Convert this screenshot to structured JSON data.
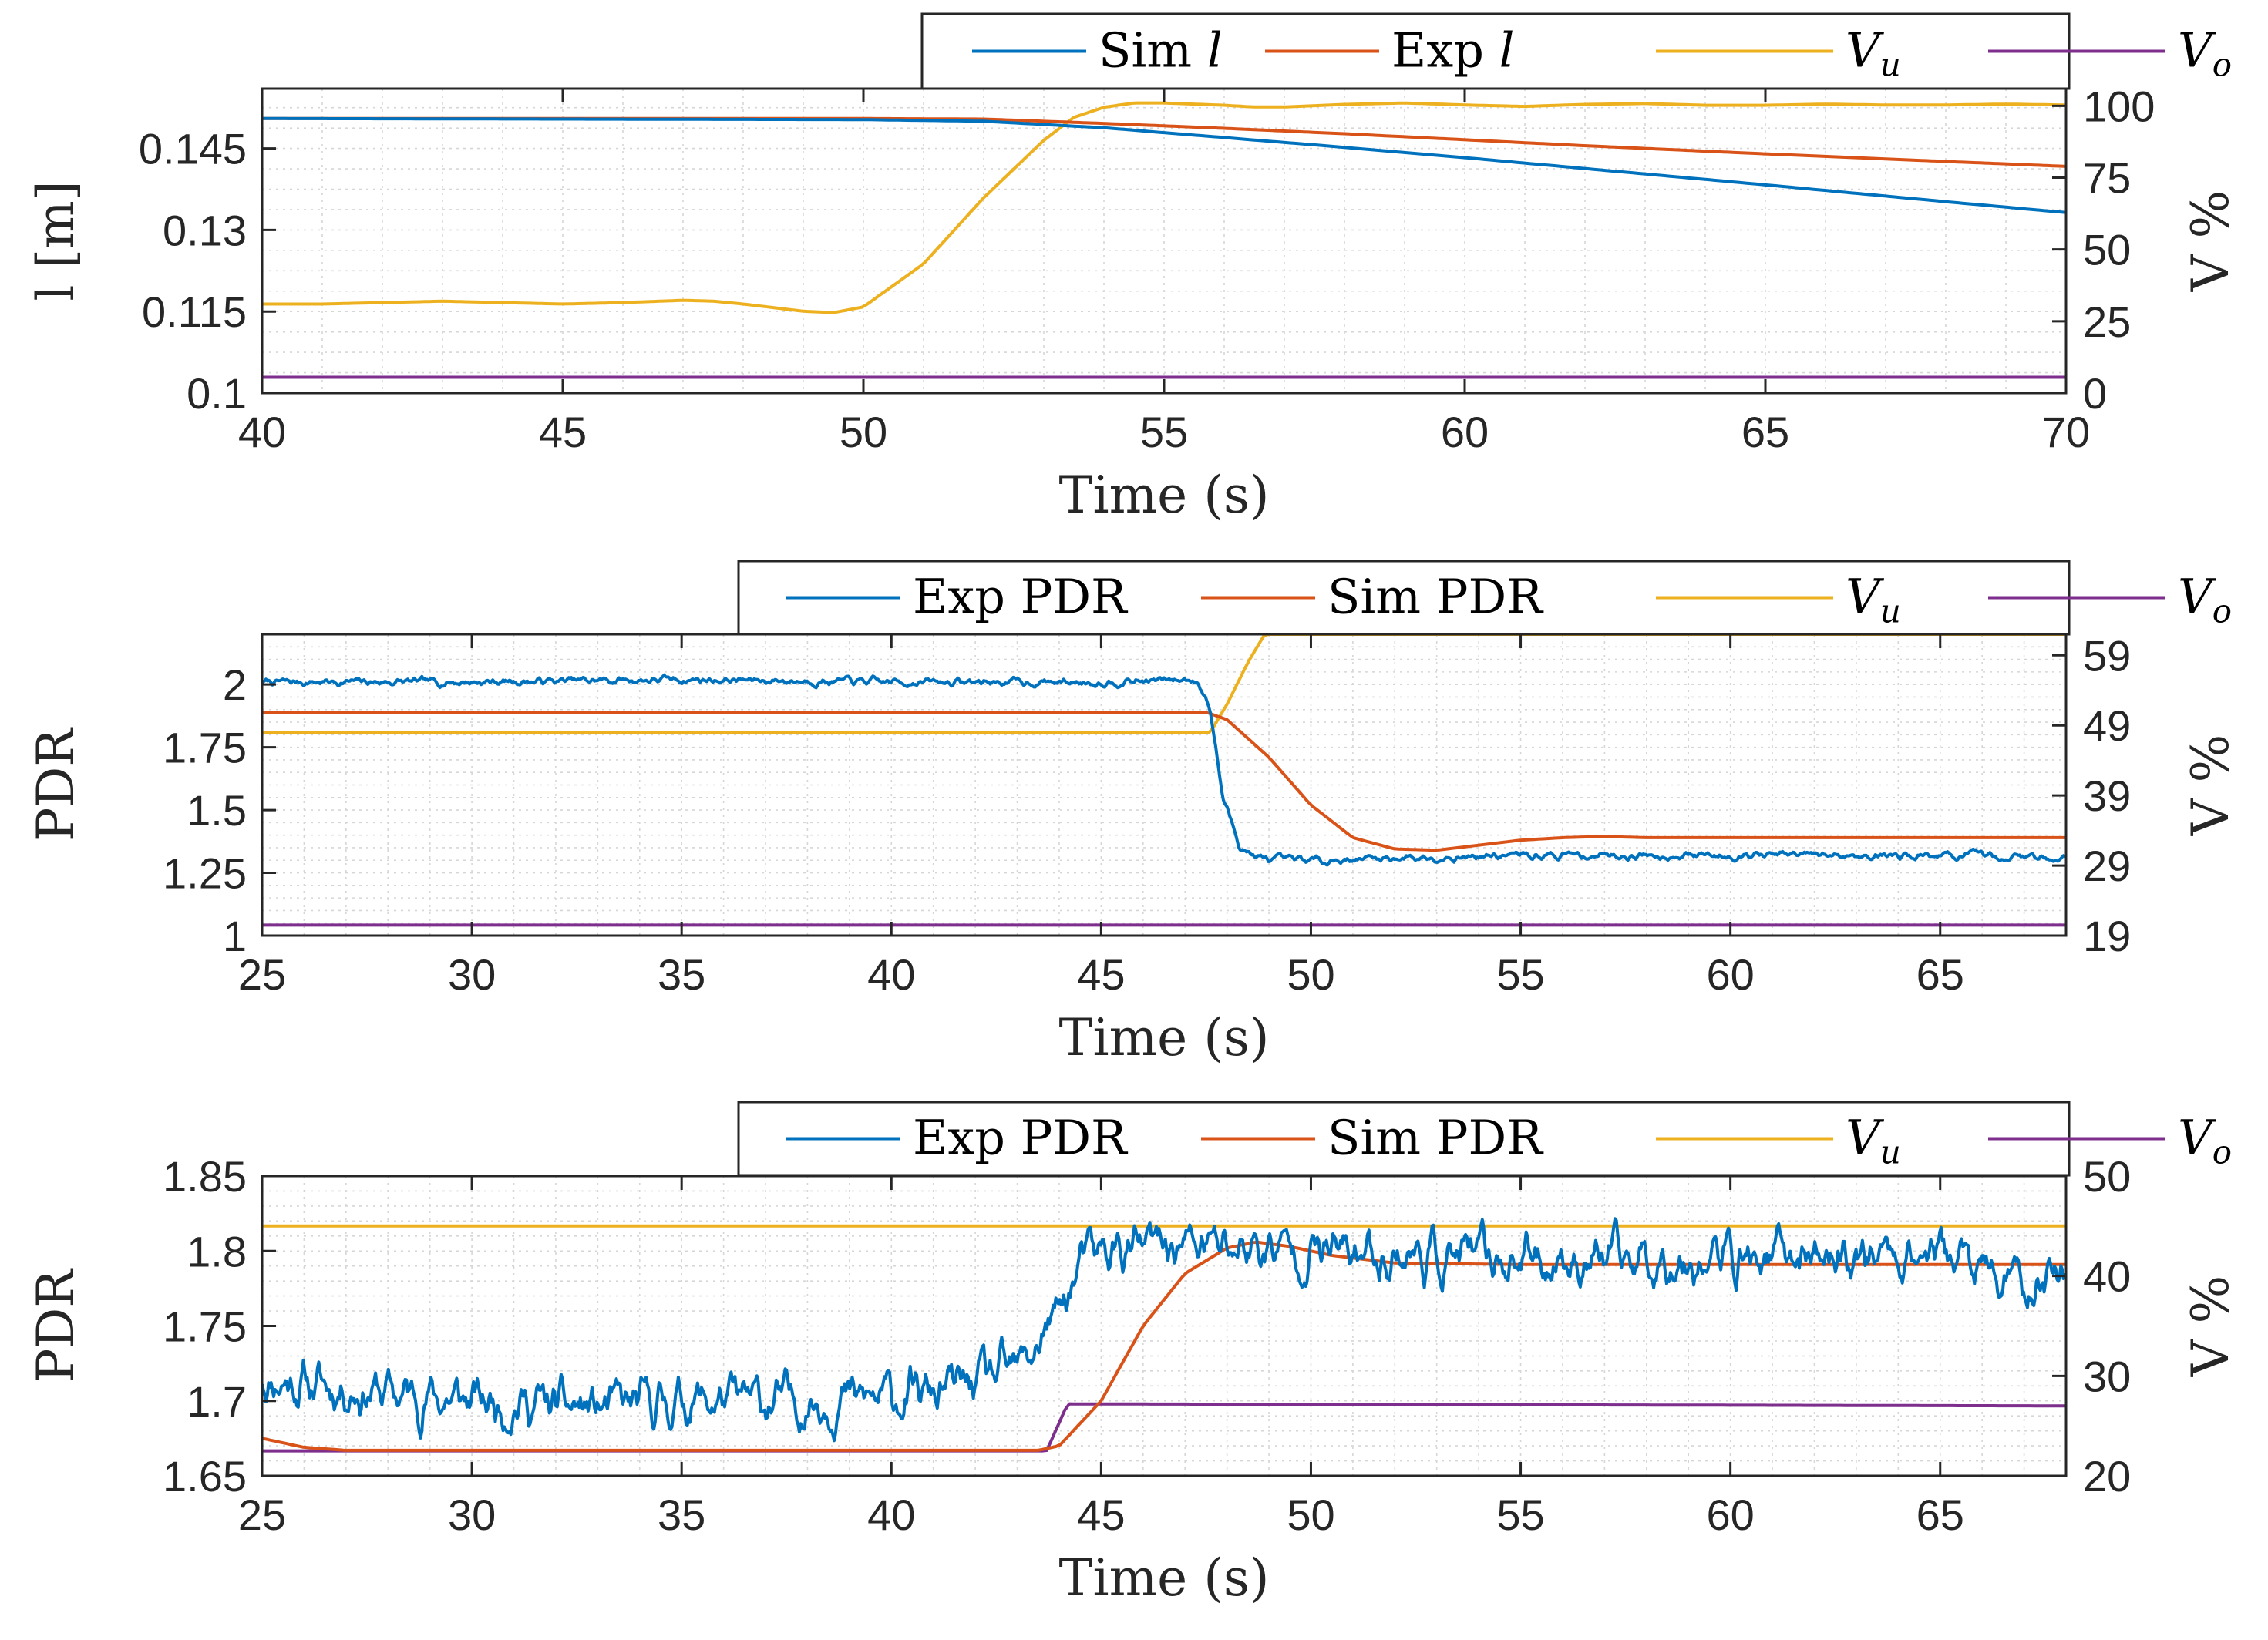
{
  "colors": {
    "blue": "#0072BD",
    "orange": "#D95319",
    "yellow": "#EDB120",
    "purple": "#7E2F8E",
    "axis": "#262626",
    "grid": "#d6d6d6"
  },
  "chart_data": [
    {
      "type": "line",
      "xlabel": "Time (s)",
      "ylabel": "l [m]",
      "ylabel_right": "V %",
      "xlim": [
        40,
        70
      ],
      "ylim": [
        0.1,
        0.156
      ],
      "ylim_right": [
        0,
        106
      ],
      "xticks": [
        "40",
        "45",
        "50",
        "55",
        "60",
        "65",
        "70"
      ],
      "yticks": [
        "0.1",
        "0.115",
        "0.13",
        "0.145"
      ],
      "yticks_right": [
        "0",
        "25",
        "50",
        "75",
        "100"
      ],
      "legend": [
        {
          "name": "Sim",
          "sym": "l",
          "sub": "",
          "color": "blue"
        },
        {
          "name": "Exp",
          "sym": "l",
          "sub": "",
          "color": "orange"
        },
        {
          "name": "",
          "sym": "V",
          "sub": "u",
          "color": "yellow"
        },
        {
          "name": "",
          "sym": "V",
          "sub": "o",
          "color": "purple"
        }
      ],
      "series": [
        {
          "name": "Sim l",
          "axis": "left",
          "color": "blue",
          "x": [
            40,
            45,
            50,
            52,
            54,
            56,
            58,
            60,
            62,
            65,
            68,
            70
          ],
          "y": [
            0.1505,
            0.1504,
            0.1503,
            0.15,
            0.1488,
            0.147,
            0.1452,
            0.1433,
            0.1413,
            0.1383,
            0.1352,
            0.1332
          ]
        },
        {
          "name": "Exp l",
          "axis": "left",
          "color": "orange",
          "x": [
            40,
            45,
            50,
            52,
            54,
            56,
            58,
            60,
            62,
            65,
            68,
            70
          ],
          "y": [
            0.1505,
            0.1505,
            0.1505,
            0.1504,
            0.1496,
            0.1487,
            0.1477,
            0.1466,
            0.1455,
            0.144,
            0.1426,
            0.1417
          ]
        },
        {
          "name": "V_u",
          "axis": "right",
          "color": "yellow",
          "x": [
            40,
            41,
            42,
            43,
            44,
            45,
            46,
            47,
            47.5,
            48,
            49,
            49.5,
            50,
            51,
            52,
            53,
            53.5,
            54,
            54.5,
            55,
            56,
            56.5,
            57,
            58,
            59,
            60,
            61,
            62,
            63,
            64,
            65,
            66,
            67,
            68,
            69,
            70
          ],
          "y": [
            31,
            31,
            31.5,
            32,
            31.5,
            31,
            31.5,
            32.3,
            32,
            31,
            28.5,
            28,
            30,
            45,
            68,
            88,
            96,
            99.5,
            101,
            101,
            100.2,
            99.6,
            99.6,
            100.5,
            101,
            100.3,
            99.8,
            100.5,
            100.8,
            100.2,
            100.2,
            100.6,
            100.3,
            100.3,
            100.6,
            100.3
          ]
        },
        {
          "name": "V_o",
          "axis": "right",
          "color": "purple",
          "x": [
            40,
            70
          ],
          "y": [
            5.5,
            5.5
          ]
        }
      ]
    },
    {
      "type": "line",
      "xlabel": "Time (s)",
      "ylabel": "PDR",
      "ylabel_right": "V %",
      "xlim": [
        25,
        68
      ],
      "ylim": [
        1,
        2.2
      ],
      "ylim_right": [
        19,
        62
      ],
      "xticks": [
        "25",
        "30",
        "35",
        "40",
        "45",
        "50",
        "55",
        "60",
        "65"
      ],
      "yticks": [
        "1",
        "1.25",
        "1.5",
        "1.75",
        "2"
      ],
      "yticks_right": [
        "19",
        "29",
        "39",
        "49",
        "59"
      ],
      "legend": [
        {
          "name": "Exp PDR",
          "sym": "",
          "sub": "",
          "color": "blue"
        },
        {
          "name": "Sim PDR",
          "sym": "",
          "sub": "",
          "color": "orange"
        },
        {
          "name": "",
          "sym": "V",
          "sub": "u",
          "color": "yellow"
        },
        {
          "name": "",
          "sym": "V",
          "sub": "o",
          "color": "purple"
        }
      ],
      "series": [
        {
          "name": "Exp PDR",
          "axis": "left",
          "color": "blue",
          "noise": 0.018,
          "seed": 7,
          "x": [
            25,
            30,
            35,
            40,
            45,
            47.3,
            47.6,
            47.9,
            48.3,
            48.7,
            49,
            50,
            52,
            55,
            58,
            60,
            62,
            65,
            68
          ],
          "y": [
            2.01,
            2.01,
            2.02,
            2.01,
            2.01,
            2.02,
            1.9,
            1.55,
            1.36,
            1.31,
            1.3,
            1.3,
            1.31,
            1.32,
            1.32,
            1.32,
            1.32,
            1.32,
            1.31
          ]
        },
        {
          "name": "Sim PDR",
          "axis": "left",
          "color": "orange",
          "x": [
            25,
            30,
            35,
            40,
            45,
            47.5,
            48,
            49,
            50,
            51,
            52,
            53,
            54,
            55,
            56,
            57,
            58,
            60,
            62,
            65,
            68
          ],
          "y": [
            1.89,
            1.89,
            1.89,
            1.89,
            1.89,
            1.89,
            1.86,
            1.71,
            1.52,
            1.39,
            1.345,
            1.34,
            1.36,
            1.38,
            1.39,
            1.395,
            1.39,
            1.39,
            1.39,
            1.39,
            1.39
          ]
        },
        {
          "name": "V_u",
          "axis": "right",
          "color": "yellow",
          "x": [
            25,
            47.6,
            48,
            48.5,
            48.9,
            50,
            68
          ],
          "y": [
            48,
            48,
            52,
            58,
            62,
            62,
            62
          ]
        },
        {
          "name": "V_o",
          "axis": "right",
          "color": "purple",
          "x": [
            25,
            68
          ],
          "y": [
            20.5,
            20.5
          ]
        }
      ]
    },
    {
      "type": "line",
      "xlabel": "Time (s)",
      "ylabel": "PDR",
      "ylabel_right": "V %",
      "xlim": [
        25,
        68
      ],
      "ylim": [
        1.65,
        1.85
      ],
      "ylim_right": [
        20,
        50
      ],
      "xticks": [
        "25",
        "30",
        "35",
        "40",
        "45",
        "50",
        "55",
        "60",
        "65"
      ],
      "yticks": [
        "1.65",
        "1.7",
        "1.75",
        "1.8",
        "1.85"
      ],
      "yticks_right": [
        "20",
        "30",
        "40",
        "50"
      ],
      "legend": [
        {
          "name": "Exp PDR",
          "sym": "",
          "sub": "",
          "color": "blue"
        },
        {
          "name": "Sim PDR",
          "sym": "",
          "sub": "",
          "color": "orange"
        },
        {
          "name": "",
          "sym": "V",
          "sub": "u",
          "color": "yellow"
        },
        {
          "name": "",
          "sym": "V",
          "sub": "o",
          "color": "purple"
        }
      ],
      "series": [
        {
          "name": "Exp PDR",
          "axis": "left",
          "color": "blue",
          "noise": 0.019,
          "seed": 11,
          "x": [
            25,
            28,
            30,
            33,
            35,
            37,
            39,
            41,
            43,
            43.5,
            44,
            44.5,
            45,
            47,
            50,
            55,
            60,
            65,
            66.5,
            67,
            68
          ],
          "y": [
            1.715,
            1.705,
            1.7,
            1.695,
            1.7,
            1.7,
            1.7,
            1.705,
            1.72,
            1.74,
            1.76,
            1.79,
            1.8,
            1.805,
            1.8,
            1.795,
            1.795,
            1.8,
            1.78,
            1.775,
            1.79
          ]
        },
        {
          "name": "Sim PDR",
          "axis": "left",
          "color": "orange",
          "x": [
            25,
            26,
            27,
            30,
            35,
            40,
            43.5,
            44,
            45,
            46,
            47,
            48,
            48.7,
            49.5,
            50.5,
            52,
            55,
            60,
            65,
            68
          ],
          "y": [
            1.675,
            1.669,
            1.667,
            1.667,
            1.667,
            1.667,
            1.667,
            1.67,
            1.7,
            1.75,
            1.785,
            1.802,
            1.806,
            1.803,
            1.797,
            1.792,
            1.791,
            1.791,
            1.791,
            1.791
          ]
        },
        {
          "name": "V_u",
          "axis": "right",
          "color": "yellow",
          "x": [
            25,
            68
          ],
          "y": [
            45,
            45
          ]
        },
        {
          "name": "V_o",
          "axis": "right",
          "color": "purple",
          "x": [
            25,
            43.7,
            44.2,
            68
          ],
          "y": [
            22.5,
            22.5,
            27.2,
            27
          ]
        }
      ]
    }
  ]
}
